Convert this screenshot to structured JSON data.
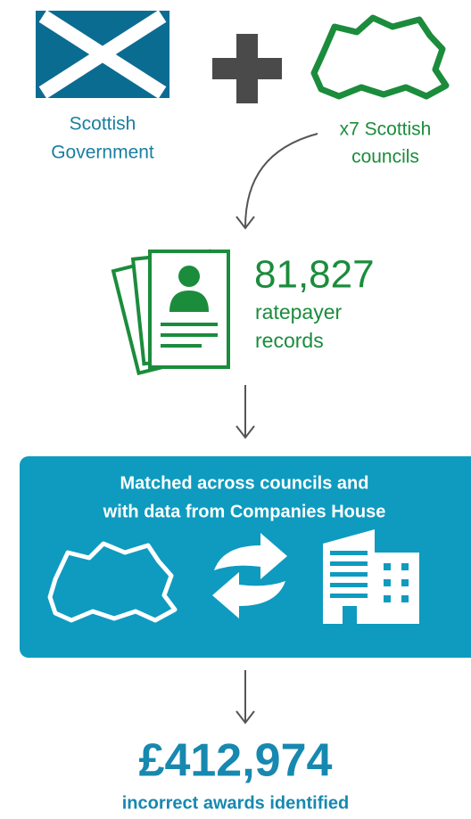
{
  "sources": [
    {
      "lines": [
        "Scottish",
        "Government"
      ]
    },
    {
      "lines": [
        "x7 Scottish",
        "councils"
      ]
    }
  ],
  "records": {
    "count": "81,827",
    "lines": [
      "ratepayer",
      "records"
    ]
  },
  "process": {
    "lines": [
      "Matched across councils and",
      "with data from Companies House"
    ]
  },
  "result": {
    "amount": "£412,974",
    "label": "incorrect awards identified"
  }
}
